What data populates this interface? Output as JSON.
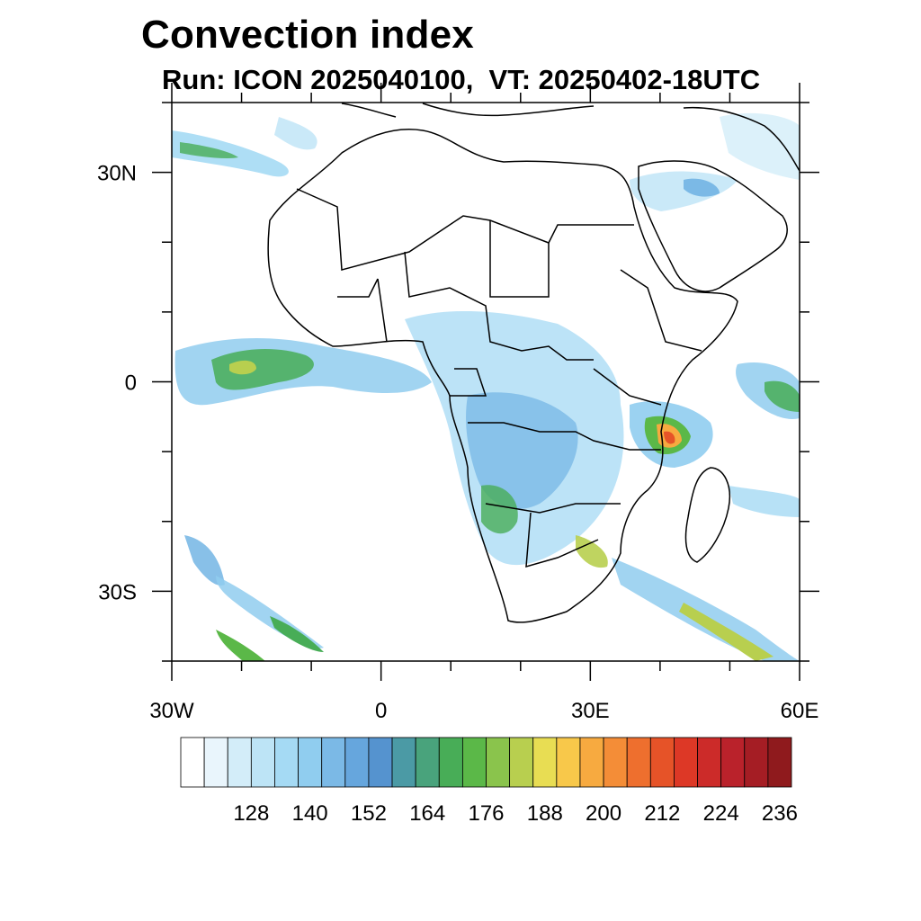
{
  "header": {
    "title": "Convection index",
    "subtitle": "Run: ICON 2025040100,  VT: 20250402-18UTC"
  },
  "map": {
    "lon_range": [
      -30,
      60
    ],
    "lat_range": [
      -40,
      40
    ],
    "x_ticks": [
      {
        "value": -30,
        "label": "30W"
      },
      {
        "value": 0,
        "label": "0"
      },
      {
        "value": 30,
        "label": "30E"
      },
      {
        "value": 60,
        "label": "60E"
      }
    ],
    "y_ticks": [
      {
        "value": 30,
        "label": "30N"
      },
      {
        "value": 0,
        "label": "0"
      },
      {
        "value": -30,
        "label": "30S"
      }
    ],
    "minor_lon_step": 10,
    "minor_lat_step": 10
  },
  "colorbar": {
    "colors": [
      "#ffffff",
      "#e9f5fc",
      "#d3edf9",
      "#bde4f6",
      "#a5daf4",
      "#90cdef",
      "#7bb9e6",
      "#66a6dd",
      "#5593cf",
      "#4b9aa5",
      "#49a37c",
      "#48ad57",
      "#5bb848",
      "#8ac44c",
      "#b8cf4f",
      "#e8dd53",
      "#f8c84a",
      "#f7aa40",
      "#f48d37",
      "#ee6f2e",
      "#e65328",
      "#dd3826",
      "#cc2b29",
      "#ba222b",
      "#a51d24",
      "#8f1a1d"
    ],
    "labels": [
      "128",
      "140",
      "152",
      "164",
      "176",
      "188",
      "200",
      "212",
      "224",
      "236"
    ]
  }
}
